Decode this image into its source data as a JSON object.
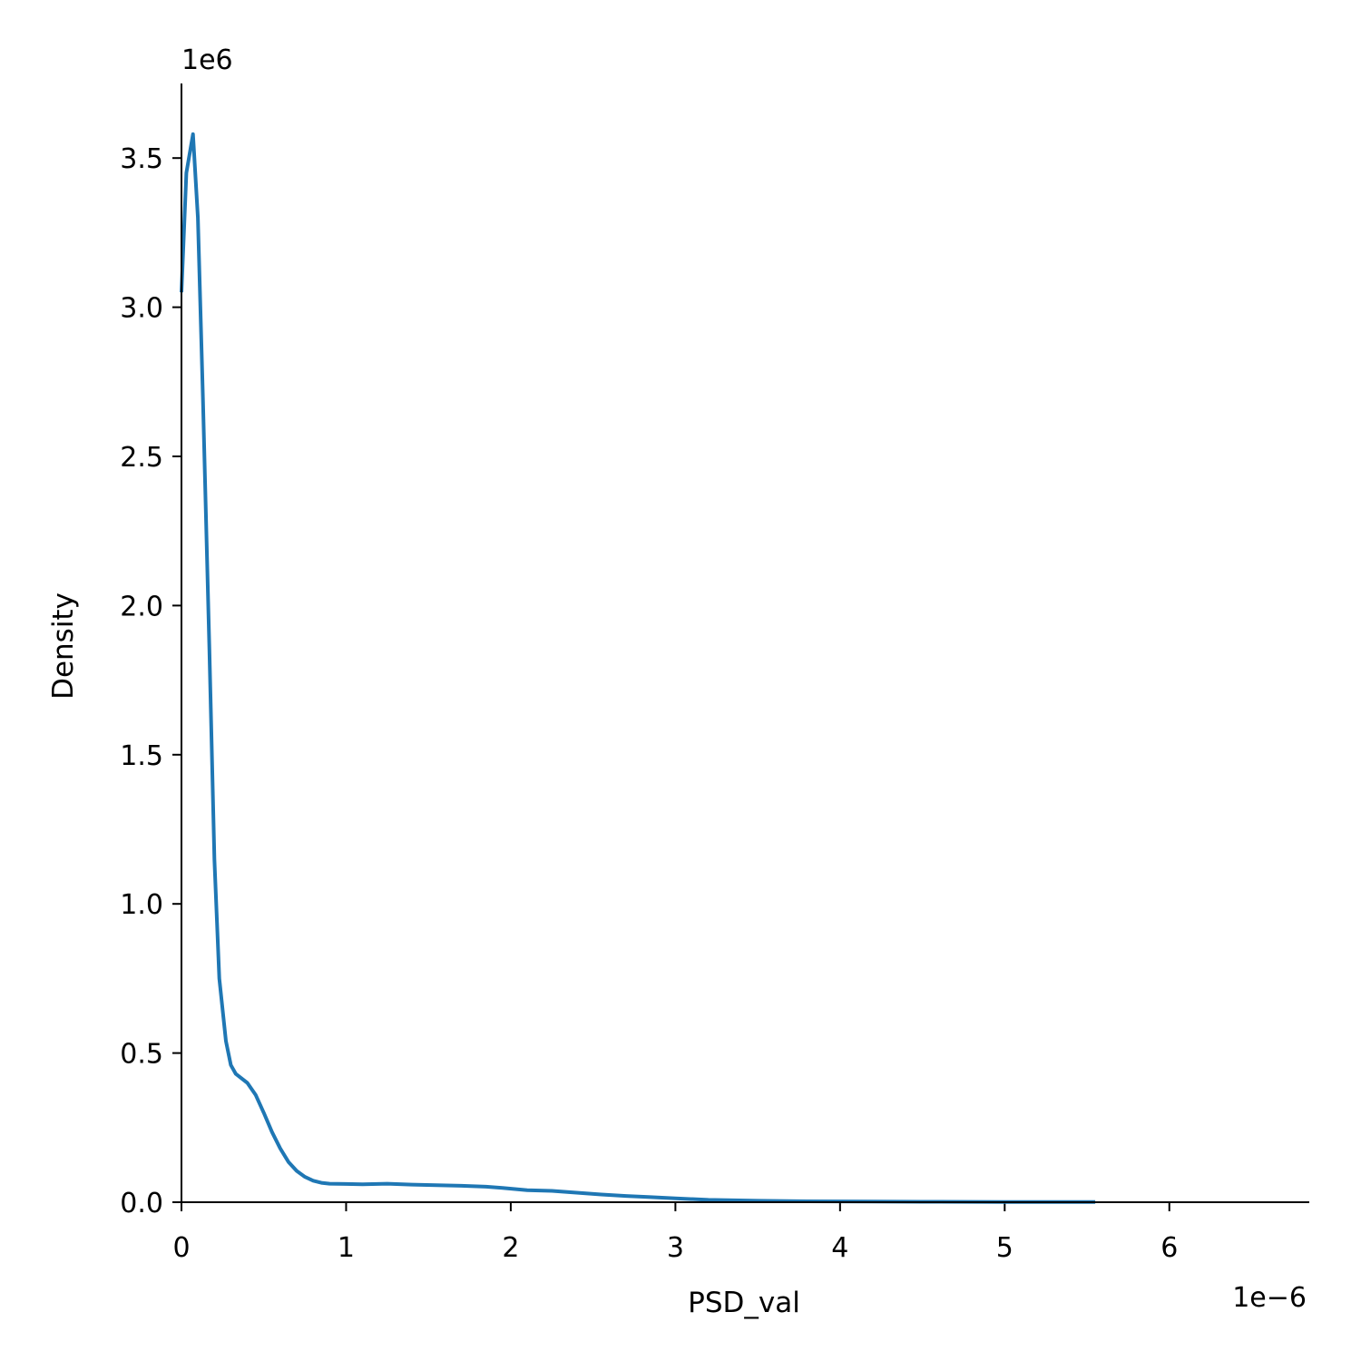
{
  "chart_data": {
    "type": "line",
    "xlabel": "PSD_val",
    "ylabel": "Density",
    "x_offset_text": "1e−6",
    "y_offset_text": "1e6",
    "xlim": [
      0,
      6.85
    ],
    "ylim": [
      0,
      3.75
    ],
    "x_ticks": [
      0,
      1,
      2,
      3,
      4,
      5,
      6
    ],
    "x_tick_labels": [
      "0",
      "1",
      "2",
      "3",
      "4",
      "5",
      "6"
    ],
    "y_ticks": [
      0,
      0.5,
      1.0,
      1.5,
      2.0,
      2.5,
      3.0,
      3.5
    ],
    "y_tick_labels": [
      "0.0",
      "0.5",
      "1.0",
      "1.5",
      "2.0",
      "2.5",
      "3.0",
      "3.5"
    ],
    "grid": false,
    "legend": "none",
    "series": [
      {
        "color": "#1f77b4",
        "x": [
          0.0,
          0.03,
          0.07,
          0.1,
          0.13,
          0.17,
          0.2,
          0.23,
          0.27,
          0.3,
          0.33,
          0.4,
          0.45,
          0.5,
          0.55,
          0.6,
          0.65,
          0.7,
          0.75,
          0.8,
          0.85,
          0.9,
          1.0,
          1.1,
          1.25,
          1.4,
          1.55,
          1.7,
          1.85,
          1.95,
          2.1,
          2.25,
          2.4,
          2.55,
          2.7,
          2.85,
          3.0,
          3.2,
          3.5,
          3.8,
          4.2,
          4.6,
          5.0,
          5.3,
          5.55
        ],
        "y": [
          3.05,
          3.45,
          3.58,
          3.3,
          2.7,
          1.85,
          1.15,
          0.75,
          0.54,
          0.46,
          0.43,
          0.4,
          0.36,
          0.3,
          0.235,
          0.18,
          0.135,
          0.105,
          0.085,
          0.072,
          0.065,
          0.062,
          0.061,
          0.06,
          0.062,
          0.059,
          0.057,
          0.055,
          0.052,
          0.048,
          0.04,
          0.038,
          0.032,
          0.026,
          0.021,
          0.017,
          0.013,
          0.008,
          0.005,
          0.003,
          0.002,
          0.0015,
          0.001,
          0.0008,
          0.0005
        ]
      }
    ]
  }
}
